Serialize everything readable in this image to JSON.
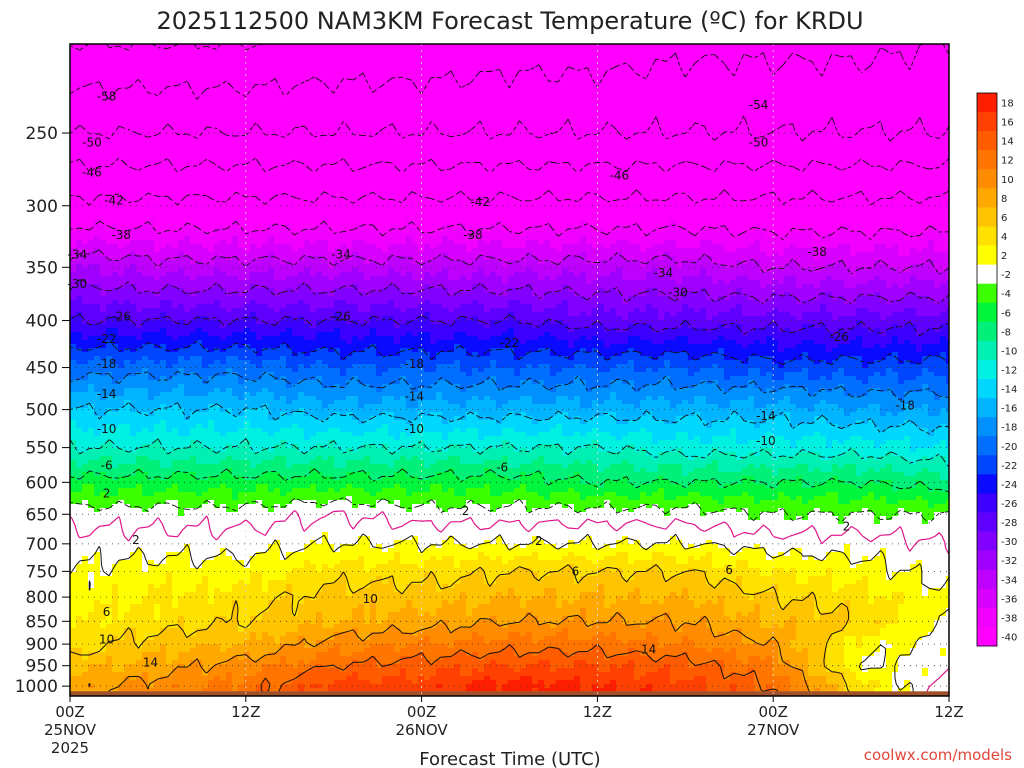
{
  "chart_data": {
    "type": "heatmap",
    "title": "2025112500 NAM3KM Forecast Temperature (ºC) for KRDU",
    "xlabel": "Forecast Time (UTC)",
    "ylabel": "",
    "credit": "coolwx.com/models",
    "y_axis": {
      "scale": "log",
      "reversed": true,
      "ylim": [
        1025,
        200
      ],
      "ticks": [
        {
          "value": 250,
          "label": "250"
        },
        {
          "value": 300,
          "label": "300"
        },
        {
          "value": 350,
          "label": "350"
        },
        {
          "value": 400,
          "label": "400"
        },
        {
          "value": 450,
          "label": "450"
        },
        {
          "value": 500,
          "label": "500"
        },
        {
          "value": 550,
          "label": "550"
        },
        {
          "value": 600,
          "label": "600"
        },
        {
          "value": 650,
          "label": "650"
        },
        {
          "value": 700,
          "label": "700"
        },
        {
          "value": 750,
          "label": "750"
        },
        {
          "value": 800,
          "label": "800"
        },
        {
          "value": 850,
          "label": "850"
        },
        {
          "value": 900,
          "label": "900"
        },
        {
          "value": 950,
          "label": "950"
        },
        {
          "value": 1000,
          "label": "1000"
        }
      ]
    },
    "x_axis": {
      "xlim": [
        0,
        60
      ],
      "ticks": [
        {
          "value": 0,
          "label": "00Z",
          "date": "25NOV",
          "year": "2025"
        },
        {
          "value": 12,
          "label": "12Z",
          "date": "",
          "year": ""
        },
        {
          "value": 24,
          "label": "00Z",
          "date": "26NOV",
          "year": ""
        },
        {
          "value": 36,
          "label": "12Z",
          "date": "",
          "year": ""
        },
        {
          "value": 48,
          "label": "00Z",
          "date": "27NOV",
          "year": ""
        },
        {
          "value": 60,
          "label": "12Z",
          "date": "",
          "year": ""
        }
      ]
    },
    "surface_pressure": 1013,
    "levels": [
      -40,
      -38,
      -36,
      -34,
      -32,
      -30,
      -28,
      -26,
      -24,
      -22,
      -20,
      -18,
      -16,
      -14,
      -12,
      -10,
      -8,
      -6,
      -4,
      -2,
      2,
      4,
      6,
      8,
      10,
      12,
      14,
      16,
      18
    ],
    "colorbar": [
      {
        "label": "18",
        "color": "#ff1e00"
      },
      {
        "label": "16",
        "color": "#ff4000"
      },
      {
        "label": "14",
        "color": "#ff5c00"
      },
      {
        "label": "12",
        "color": "#ff7500"
      },
      {
        "label": "10",
        "color": "#ff8c00"
      },
      {
        "label": "8",
        "color": "#ffa800"
      },
      {
        "label": "6",
        "color": "#ffc400"
      },
      {
        "label": "4",
        "color": "#ffe100"
      },
      {
        "label": "2",
        "color": "#ffff00"
      },
      {
        "label": "-2",
        "color": "#ffffff"
      },
      {
        "label": "-4",
        "color": "#3cff00"
      },
      {
        "label": "-6",
        "color": "#00f53c"
      },
      {
        "label": "-8",
        "color": "#00f07a"
      },
      {
        "label": "-10",
        "color": "#00f0b4"
      },
      {
        "label": "-12",
        "color": "#00f0e1"
      },
      {
        "label": "-14",
        "color": "#00d7ff"
      },
      {
        "label": "-16",
        "color": "#00b4ff"
      },
      {
        "label": "-18",
        "color": "#0091ff"
      },
      {
        "label": "-20",
        "color": "#006eff"
      },
      {
        "label": "-22",
        "color": "#0046ff"
      },
      {
        "label": "-24",
        "color": "#0a0aff"
      },
      {
        "label": "-26",
        "color": "#3c00ff"
      },
      {
        "label": "-28",
        "color": "#5f00ff"
      },
      {
        "label": "-30",
        "color": "#8200ff"
      },
      {
        "label": "-32",
        "color": "#a000ff"
      },
      {
        "label": "-34",
        "color": "#be00ff"
      },
      {
        "label": "-36",
        "color": "#d700ff"
      },
      {
        "label": "-38",
        "color": "#f000ff"
      },
      {
        "label": "-40",
        "color": "#ff00ff"
      }
    ],
    "profile_times": [
      0,
      6,
      12,
      18,
      24,
      30,
      36,
      42,
      48,
      54,
      60
    ],
    "profile_pressures": [
      1000,
      950,
      900,
      850,
      800,
      750,
      700,
      650,
      600,
      550,
      500,
      450,
      400,
      350,
      300,
      250,
      200
    ],
    "temperature_profiles": [
      [
        9,
        7,
        5,
        4,
        3,
        2,
        1,
        -1,
        -5,
        -10,
        -14,
        -19,
        -26,
        -32,
        -41,
        -50,
        -58
      ],
      [
        11,
        9,
        7,
        5,
        4,
        3,
        1,
        -1,
        -5,
        -10,
        -14,
        -19,
        -26,
        -33,
        -41,
        -50,
        -58
      ],
      [
        13,
        11,
        8,
        6,
        5,
        3,
        1,
        -1,
        -5,
        -10,
        -14,
        -19,
        -26,
        -33,
        -41,
        -50,
        -58
      ],
      [
        17,
        14,
        11,
        8,
        7,
        5,
        2,
        0,
        -5,
        -10,
        -15,
        -20,
        -26,
        -33,
        -41,
        -50,
        -57
      ],
      [
        17,
        15,
        12,
        9,
        7,
        5,
        2,
        -1,
        -5,
        -10,
        -15,
        -20,
        -26,
        -33,
        -41,
        -50,
        -57
      ],
      [
        19,
        16,
        13,
        10,
        8,
        6,
        2,
        -1,
        -5,
        -10,
        -15,
        -20,
        -26,
        -33,
        -41,
        -50,
        -56
      ],
      [
        18,
        16,
        13,
        10,
        8,
        6,
        2,
        -1,
        -6,
        -10,
        -15,
        -20,
        -27,
        -33,
        -41,
        -50,
        -56
      ],
      [
        17,
        15,
        12,
        10,
        8,
        6,
        2,
        -1,
        -6,
        -11,
        -15,
        -20,
        -27,
        -33,
        -41,
        -50,
        -55
      ],
      [
        14,
        12,
        10,
        8,
        6,
        4,
        1,
        -2,
        -6,
        -11,
        -15,
        -21,
        -27,
        -34,
        -41,
        -50,
        -55
      ],
      [
        5,
        2,
        3,
        6,
        5,
        3,
        1,
        -2,
        -6,
        -11,
        -16,
        -21,
        -27,
        -34,
        -41,
        -50,
        -55
      ],
      [
        -1,
        1,
        1,
        2,
        2,
        1,
        0,
        -2,
        -7,
        -12,
        -16,
        -21,
        -27,
        -34,
        -41,
        -50,
        -54
      ]
    ],
    "contour_labels": [
      {
        "t": 2.5,
        "p": 228,
        "label": "-58"
      },
      {
        "t": 1.5,
        "p": 256,
        "label": "-50"
      },
      {
        "t": 1.5,
        "p": 276,
        "label": "-46"
      },
      {
        "t": 3.0,
        "p": 296,
        "label": "-42"
      },
      {
        "t": 3.5,
        "p": 323,
        "label": "-38"
      },
      {
        "t": 0.5,
        "p": 339,
        "label": "-34"
      },
      {
        "t": 0.5,
        "p": 365,
        "label": "-30"
      },
      {
        "t": 3.5,
        "p": 396,
        "label": "-26"
      },
      {
        "t": 2.5,
        "p": 419,
        "label": "-22"
      },
      {
        "t": 2.5,
        "p": 446,
        "label": "-18"
      },
      {
        "t": 2.5,
        "p": 481,
        "label": "-14"
      },
      {
        "t": 2.5,
        "p": 525,
        "label": "-10"
      },
      {
        "t": 2.5,
        "p": 575,
        "label": "-6"
      },
      {
        "t": 2.5,
        "p": 617,
        "label": "2"
      },
      {
        "t": 4.5,
        "p": 693,
        "label": "2"
      },
      {
        "t": 2.5,
        "p": 830,
        "label": "6"
      },
      {
        "t": 2.5,
        "p": 890,
        "label": "10"
      },
      {
        "t": 5.5,
        "p": 943,
        "label": "14"
      },
      {
        "t": 28.0,
        "p": 297,
        "label": "-42"
      },
      {
        "t": 27.5,
        "p": 323,
        "label": "-38"
      },
      {
        "t": 18.5,
        "p": 339,
        "label": "-34"
      },
      {
        "t": 18.5,
        "p": 396,
        "label": "-26"
      },
      {
        "t": 30.0,
        "p": 423,
        "label": "-22"
      },
      {
        "t": 23.5,
        "p": 446,
        "label": "-18"
      },
      {
        "t": 23.5,
        "p": 484,
        "label": "-14"
      },
      {
        "t": 23.5,
        "p": 525,
        "label": "-10"
      },
      {
        "t": 29.5,
        "p": 578,
        "label": "-6"
      },
      {
        "t": 27.0,
        "p": 645,
        "label": "2"
      },
      {
        "t": 32.0,
        "p": 695,
        "label": "2"
      },
      {
        "t": 34.5,
        "p": 750,
        "label": "6"
      },
      {
        "t": 20.5,
        "p": 804,
        "label": "10"
      },
      {
        "t": 39.5,
        "p": 912,
        "label": "14"
      },
      {
        "t": 37.5,
        "p": 278,
        "label": "-46"
      },
      {
        "t": 40.5,
        "p": 355,
        "label": "-34"
      },
      {
        "t": 41.5,
        "p": 373,
        "label": "-30"
      },
      {
        "t": 47.0,
        "p": 233,
        "label": "-54"
      },
      {
        "t": 47.0,
        "p": 256,
        "label": "-50"
      },
      {
        "t": 51.0,
        "p": 337,
        "label": "-38"
      },
      {
        "t": 52.5,
        "p": 417,
        "label": "-26"
      },
      {
        "t": 57.0,
        "p": 495,
        "label": "-18"
      },
      {
        "t": 47.5,
        "p": 508,
        "label": "-14"
      },
      {
        "t": 47.5,
        "p": 541,
        "label": "-10"
      },
      {
        "t": 53.0,
        "p": 670,
        "label": "2"
      },
      {
        "t": 45.0,
        "p": 747,
        "label": "6"
      }
    ]
  }
}
